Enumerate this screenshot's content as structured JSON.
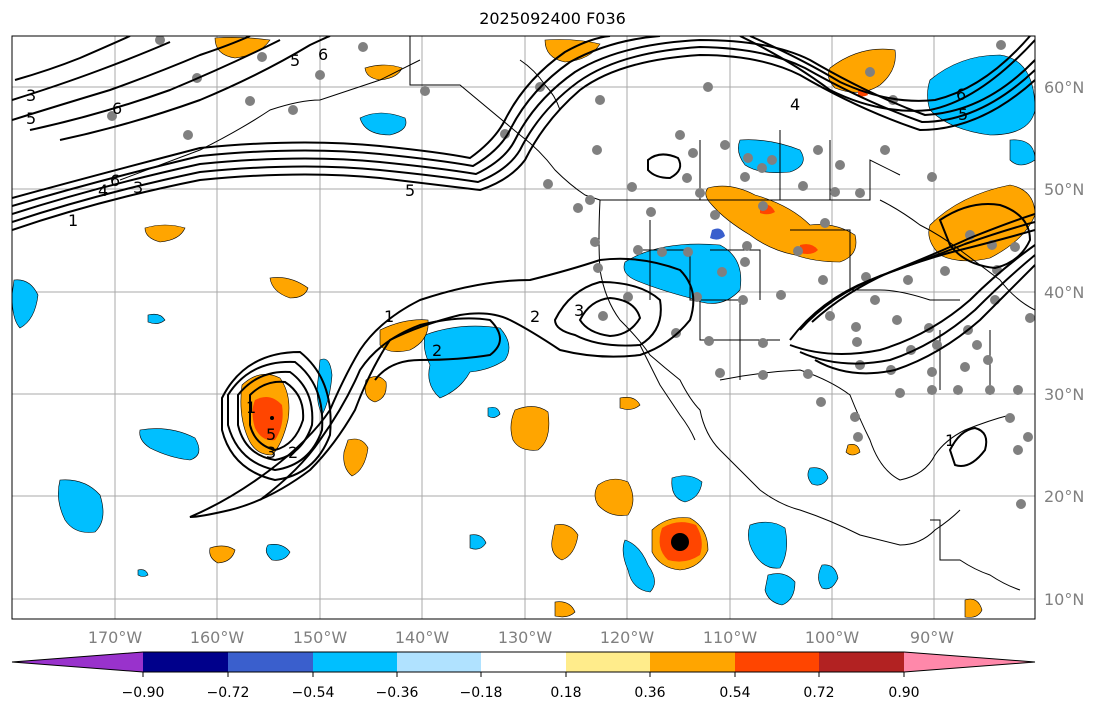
{
  "title": "2025092400 F036",
  "lon_labels": [
    "170°W",
    "160°W",
    "150°W",
    "140°W",
    "130°W",
    "120°W",
    "110°W",
    "100°W",
    "90°W"
  ],
  "lat_labels": [
    "60°N",
    "50°N",
    "40°N",
    "30°N",
    "20°N",
    "10°N"
  ],
  "colorbar": {
    "tick_labels": [
      "−0.90",
      "−0.72",
      "−0.54",
      "−0.36",
      "−0.18",
      "0.18",
      "0.36",
      "0.54",
      "0.72",
      "0.90"
    ],
    "colors": [
      "#9932cc",
      "#00008b",
      "#3a5fcd",
      "#00bfff",
      "#b0e2ff",
      "#ffffff",
      "#ffec8b",
      "#ffa500",
      "#ff4500",
      "#b22222",
      "#ff88aa"
    ]
  },
  "contour_labels": [
    "3",
    "5",
    "6",
    "5",
    "6",
    "1",
    "4",
    "6",
    "3",
    "5",
    "1",
    "2",
    "3",
    "2",
    "1",
    "5",
    "3",
    "2",
    "4",
    "6",
    "5",
    "1"
  ]
}
